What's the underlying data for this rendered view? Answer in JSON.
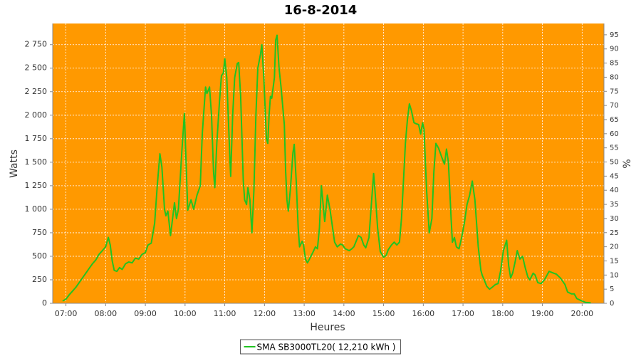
{
  "chart_data": {
    "type": "line",
    "title": "16-8-2014",
    "xlabel": "Heures",
    "ylabel": "Watts",
    "y2label": "%",
    "background": "#ff9900",
    "grid": true,
    "xlim": [
      "06:40",
      "20:33"
    ],
    "xticks": [
      "07:00",
      "08:00",
      "09:00",
      "10:00",
      "11:00",
      "12:00",
      "13:00",
      "14:00",
      "15:00",
      "16:00",
      "17:00",
      "18:00",
      "19:00",
      "20:00"
    ],
    "ylim": [
      0,
      2975
    ],
    "yticks": [
      0,
      250,
      500,
      750,
      {
        "value": 1000,
        "label": "1 000"
      },
      {
        "value": 1250,
        "label": "1 250"
      },
      {
        "value": 1500,
        "label": "1 500"
      },
      {
        "value": 1750,
        "label": "1 750"
      },
      {
        "value": 2000,
        "label": "2 000"
      },
      {
        "value": 2250,
        "label": "2 250"
      },
      {
        "value": 2500,
        "label": "2 500"
      },
      {
        "value": 2750,
        "label": "2 750"
      }
    ],
    "y2lim": [
      0,
      99
    ],
    "y2ticks": [
      0,
      5,
      10,
      15,
      20,
      25,
      30,
      35,
      40,
      45,
      50,
      55,
      60,
      65,
      70,
      75,
      80,
      85,
      90,
      95
    ],
    "x": [
      "06:55",
      "07:00",
      "07:05",
      "07:10",
      "07:15",
      "07:20",
      "07:25",
      "07:30",
      "07:35",
      "07:40",
      "07:45",
      "07:50",
      "07:55",
      "08:00",
      "08:04",
      "08:07",
      "08:10",
      "08:13",
      "08:17",
      "08:21",
      "08:25",
      "08:30",
      "08:35",
      "08:40",
      "08:45",
      "08:50",
      "08:55",
      "09:00",
      "09:04",
      "09:09",
      "09:14",
      "09:18",
      "09:22",
      "09:25",
      "09:29",
      "09:31",
      "09:34",
      "09:38",
      "09:42",
      "09:44",
      "09:47",
      "09:50",
      "09:55",
      "09:59",
      "10:02",
      "10:04",
      "10:09",
      "10:13",
      "10:18",
      "10:23",
      "10:26",
      "10:31",
      "10:33",
      "10:37",
      "10:40",
      "10:43",
      "10:45",
      "10:48",
      "10:52",
      "10:55",
      "10:58",
      "11:00",
      "11:03",
      "11:08",
      "11:09",
      "11:12",
      "11:15",
      "11:19",
      "11:21",
      "11:24",
      "11:28",
      "11:30",
      "11:33",
      "11:35",
      "11:38",
      "11:41",
      "11:44",
      "11:47",
      "11:50",
      "11:54",
      "11:56",
      "11:59",
      "12:03",
      "12:05",
      "12:07",
      "12:09",
      "12:11",
      "12:15",
      "12:17",
      "12:19",
      "12:22",
      "12:25",
      "12:30",
      "12:32",
      "12:34",
      "12:36",
      "12:39",
      "12:43",
      "12:45",
      "12:48",
      "12:51",
      "12:53",
      "12:57",
      "12:59",
      "13:02",
      "13:05",
      "13:08",
      "13:13",
      "13:17",
      "13:20",
      "13:23",
      "13:26",
      "13:28",
      "13:31",
      "13:33",
      "13:35",
      "13:39",
      "13:42",
      "13:46",
      "13:50",
      "13:55",
      "13:58",
      "14:02",
      "14:08",
      "14:12",
      "14:15",
      "14:22",
      "14:26",
      "14:30",
      "14:33",
      "14:38",
      "14:41",
      "14:45",
      "14:47",
      "14:51",
      "14:55",
      "15:00",
      "15:04",
      "15:07",
      "15:12",
      "15:16",
      "15:20",
      "15:24",
      "15:27",
      "15:30",
      "15:33",
      "15:36",
      "15:39",
      "15:42",
      "15:46",
      "15:49",
      "15:53",
      "15:56",
      "15:59",
      "16:01",
      "16:05",
      "16:09",
      "16:13",
      "16:16",
      "16:19",
      "16:23",
      "16:28",
      "16:32",
      "16:35",
      "16:38",
      "16:42",
      "16:44",
      "16:47",
      "16:50",
      "16:54",
      "16:58",
      "17:02",
      "17:06",
      "17:10",
      "17:14",
      "17:18",
      "17:23",
      "17:27",
      "17:29",
      "17:32",
      "17:36",
      "17:40",
      "17:44",
      "17:49",
      "17:53",
      "17:57",
      "18:01",
      "18:06",
      "18:09",
      "18:12",
      "18:15",
      "18:19",
      "18:22",
      "18:26",
      "18:30",
      "18:34",
      "18:38",
      "18:41",
      "18:46",
      "18:49",
      "18:53",
      "18:58",
      "19:03",
      "19:07",
      "19:10",
      "19:17",
      "19:21",
      "19:27",
      "19:31",
      "19:34",
      "19:38",
      "19:44",
      "19:48",
      "19:52",
      "19:58",
      "20:05",
      "20:13"
    ],
    "series": [
      {
        "name": "SMA SB3000TL20( 12,210 kWh )",
        "color": "#22c322",
        "values": [
          25,
          45,
          90,
          130,
          170,
          220,
          270,
          320,
          370,
          420,
          460,
          520,
          560,
          600,
          700,
          620,
          450,
          350,
          340,
          380,
          360,
          420,
          440,
          430,
          480,
          470,
          520,
          540,
          620,
          640,
          850,
          1250,
          1590,
          1450,
          1000,
          930,
          980,
          720,
          950,
          1070,
          900,
          1000,
          1600,
          2020,
          1400,
          990,
          1100,
          1000,
          1150,
          1250,
          1800,
          2300,
          2230,
          2300,
          2000,
          1400,
          1230,
          1700,
          2150,
          2420,
          2450,
          2600,
          2400,
          1500,
          1350,
          2000,
          2400,
          2550,
          2560,
          2200,
          1300,
          1100,
          1050,
          1230,
          1100,
          750,
          1200,
          2000,
          2500,
          2650,
          2750,
          2400,
          1750,
          1700,
          2000,
          2200,
          2180,
          2400,
          2800,
          2850,
          2500,
          2300,
          1900,
          1400,
          1100,
          980,
          1200,
          1600,
          1690,
          1300,
          800,
          600,
          660,
          620,
          470,
          430,
          470,
          540,
          600,
          580,
          800,
          1250,
          1100,
          870,
          1000,
          1150,
          1000,
          850,
          650,
          600,
          630,
          620,
          580,
          560,
          580,
          600,
          720,
          700,
          620,
          590,
          700,
          1000,
          1380,
          1200,
          800,
          550,
          490,
          510,
          570,
          620,
          650,
          620,
          650,
          900,
          1300,
          1700,
          1950,
          2120,
          2050,
          1920,
          1910,
          1900,
          1800,
          1920,
          1850,
          1200,
          750,
          900,
          1400,
          1700,
          1650,
          1550,
          1480,
          1640,
          1500,
          900,
          650,
          700,
          600,
          580,
          700,
          850,
          1050,
          1150,
          1300,
          1100,
          600,
          350,
          300,
          250,
          180,
          150,
          170,
          200,
          210,
          350,
          560,
          670,
          400,
          270,
          320,
          450,
          560,
          470,
          500,
          380,
          280,
          250,
          320,
          300,
          220,
          210,
          250,
          300,
          340,
          320,
          310,
          270,
          230,
          200,
          120,
          100,
          100,
          50,
          30,
          10,
          5
        ]
      }
    ]
  }
}
